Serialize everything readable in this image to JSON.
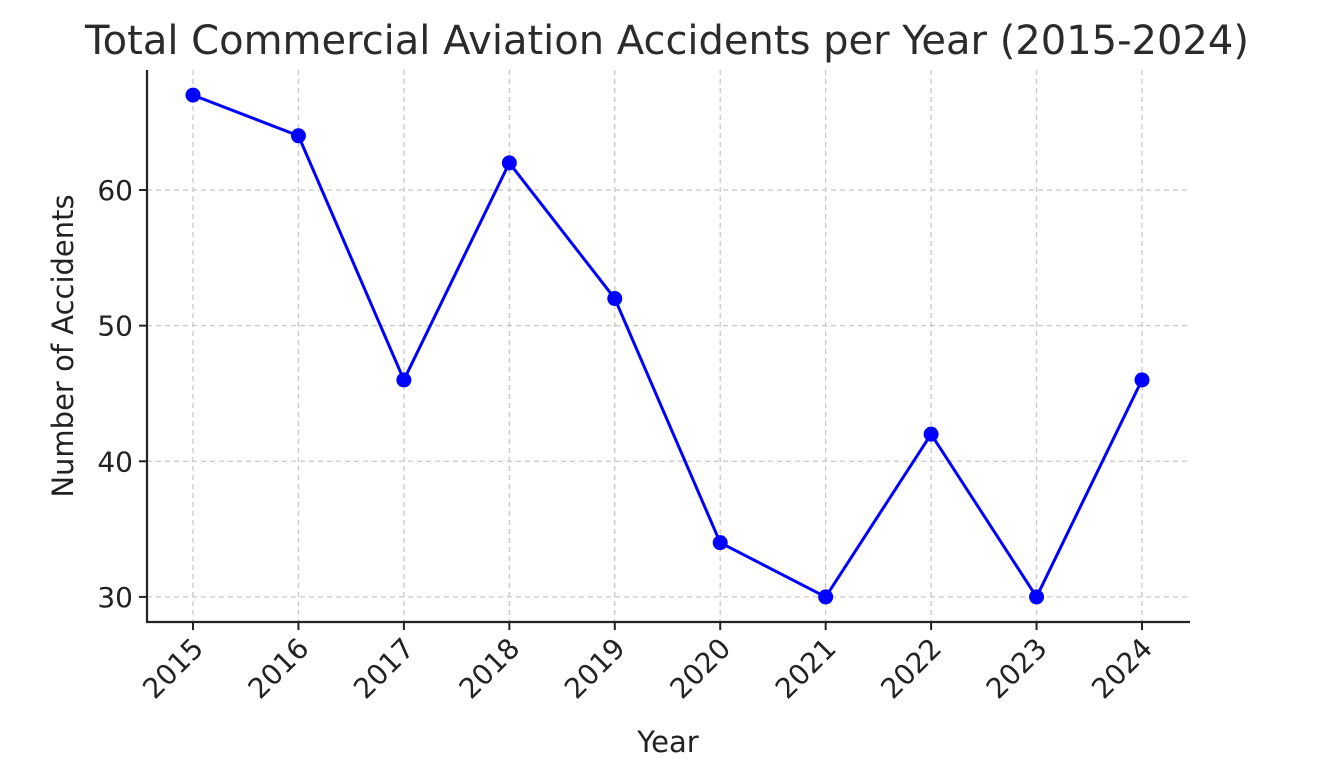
{
  "chart_data": {
    "type": "line",
    "title": "Total Commercial Aviation Accidents per Year (2015-2024)",
    "xlabel": "Year",
    "ylabel": "Number of Accidents",
    "x": [
      "2015",
      "2016",
      "2017",
      "2018",
      "2019",
      "2020",
      "2021",
      "2022",
      "2023",
      "2024"
    ],
    "series": [
      {
        "values": [
          67,
          64,
          46,
          62,
          52,
          34,
          30,
          42,
          30,
          46
        ],
        "color": "#0000ff",
        "marker": "circle"
      }
    ],
    "ylim": [
      28.15,
      68.85
    ],
    "yticks": [
      30,
      40,
      50,
      60
    ],
    "grid": true,
    "legend": "none"
  }
}
